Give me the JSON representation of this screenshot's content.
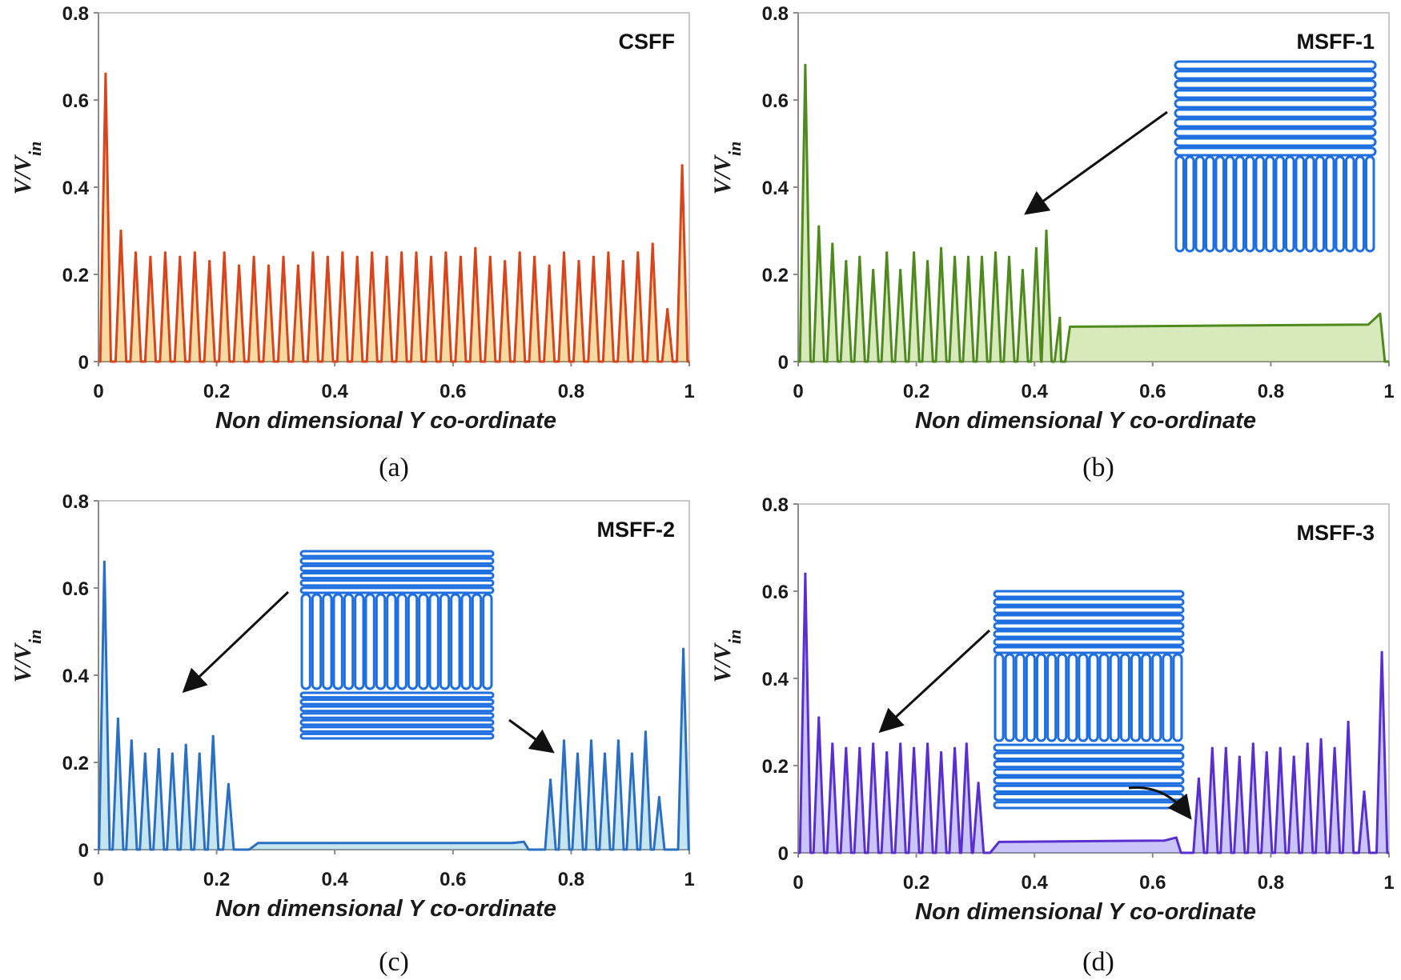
{
  "figure": {
    "panels": [
      "a",
      "b",
      "c",
      "d"
    ]
  },
  "chart_data": [
    {
      "id": "a",
      "type": "line",
      "title": "CSFF",
      "caption": "(a)",
      "xlabel": "Non dimensional Y co-ordinate",
      "ylabel": "V/V",
      "ylabel_sub": "in",
      "xlim": [
        0,
        1
      ],
      "ylim": [
        0,
        0.8
      ],
      "xticks": [
        "0",
        "0.2",
        "0.4",
        "0.6",
        "0.8",
        "1"
      ],
      "xtick_values": [
        0,
        0.2,
        0.4,
        0.6,
        0.8,
        1
      ],
      "yticks": [
        "0",
        "0.2",
        "0.4",
        "0.6",
        "0.8"
      ],
      "ytick_values": [
        0,
        0.2,
        0.4,
        0.6,
        0.8
      ],
      "color": "#d8441c",
      "fill_color": "#e8b030",
      "series": [
        {
          "name": "V/Vin",
          "peaks": [
            {
              "x": 0.012,
              "y": 0.66
            },
            {
              "x": 0.038,
              "y": 0.3
            },
            {
              "x": 0.063,
              "y": 0.25
            },
            {
              "x": 0.088,
              "y": 0.24
            },
            {
              "x": 0.113,
              "y": 0.25
            },
            {
              "x": 0.138,
              "y": 0.24
            },
            {
              "x": 0.163,
              "y": 0.25
            },
            {
              "x": 0.188,
              "y": 0.23
            },
            {
              "x": 0.213,
              "y": 0.25
            },
            {
              "x": 0.238,
              "y": 0.22
            },
            {
              "x": 0.263,
              "y": 0.24
            },
            {
              "x": 0.288,
              "y": 0.22
            },
            {
              "x": 0.313,
              "y": 0.24
            },
            {
              "x": 0.338,
              "y": 0.22
            },
            {
              "x": 0.363,
              "y": 0.25
            },
            {
              "x": 0.388,
              "y": 0.24
            },
            {
              "x": 0.413,
              "y": 0.25
            },
            {
              "x": 0.438,
              "y": 0.24
            },
            {
              "x": 0.463,
              "y": 0.25
            },
            {
              "x": 0.488,
              "y": 0.24
            },
            {
              "x": 0.513,
              "y": 0.25
            },
            {
              "x": 0.538,
              "y": 0.25
            },
            {
              "x": 0.563,
              "y": 0.24
            },
            {
              "x": 0.588,
              "y": 0.25
            },
            {
              "x": 0.613,
              "y": 0.24
            },
            {
              "x": 0.638,
              "y": 0.26
            },
            {
              "x": 0.663,
              "y": 0.24
            },
            {
              "x": 0.688,
              "y": 0.23
            },
            {
              "x": 0.713,
              "y": 0.25
            },
            {
              "x": 0.738,
              "y": 0.24
            },
            {
              "x": 0.763,
              "y": 0.22
            },
            {
              "x": 0.788,
              "y": 0.25
            },
            {
              "x": 0.813,
              "y": 0.23
            },
            {
              "x": 0.838,
              "y": 0.24
            },
            {
              "x": 0.863,
              "y": 0.25
            },
            {
              "x": 0.888,
              "y": 0.23
            },
            {
              "x": 0.913,
              "y": 0.25
            },
            {
              "x": 0.938,
              "y": 0.27
            },
            {
              "x": 0.963,
              "y": 0.12
            },
            {
              "x": 0.988,
              "y": 0.45
            }
          ]
        }
      ]
    },
    {
      "id": "b",
      "type": "line",
      "title": "MSFF-1",
      "caption": "(b)",
      "xlabel": "Non dimensional Y co-ordinate",
      "ylabel": "V/V",
      "ylabel_sub": "in",
      "xlim": [
        0,
        1
      ],
      "ylim": [
        0,
        0.8
      ],
      "xticks": [
        "0",
        "0.2",
        "0.4",
        "0.6",
        "0.8",
        "1"
      ],
      "xtick_values": [
        0,
        0.2,
        0.4,
        0.6,
        0.8,
        1
      ],
      "yticks": [
        "0",
        "0.2",
        "0.4",
        "0.6",
        "0.8"
      ],
      "ytick_values": [
        0,
        0.2,
        0.4,
        0.6,
        0.8
      ],
      "color": "#4e8a1e",
      "fill_color": "#a8d06a",
      "series": [
        {
          "name": "V/Vin",
          "peaks": [
            {
              "x": 0.012,
              "y": 0.68
            },
            {
              "x": 0.035,
              "y": 0.31
            },
            {
              "x": 0.058,
              "y": 0.27
            },
            {
              "x": 0.081,
              "y": 0.23
            },
            {
              "x": 0.104,
              "y": 0.24
            },
            {
              "x": 0.127,
              "y": 0.21
            },
            {
              "x": 0.15,
              "y": 0.25
            },
            {
              "x": 0.173,
              "y": 0.21
            },
            {
              "x": 0.196,
              "y": 0.25
            },
            {
              "x": 0.219,
              "y": 0.23
            },
            {
              "x": 0.242,
              "y": 0.26
            },
            {
              "x": 0.265,
              "y": 0.24
            },
            {
              "x": 0.288,
              "y": 0.24
            },
            {
              "x": 0.311,
              "y": 0.24
            },
            {
              "x": 0.334,
              "y": 0.25
            },
            {
              "x": 0.357,
              "y": 0.24
            },
            {
              "x": 0.38,
              "y": 0.21
            },
            {
              "x": 0.403,
              "y": 0.26
            },
            {
              "x": 0.42,
              "y": 0.3
            },
            {
              "x": 0.443,
              "y": 0.1
            }
          ],
          "plateau": {
            "start": 0.46,
            "end": 0.985,
            "level_start": 0.08,
            "level_end": 0.085,
            "end_peak": 0.11
          }
        }
      ],
      "inset": {
        "description": "serpentine channel schematic",
        "arrows": 1
      }
    },
    {
      "id": "c",
      "type": "line",
      "title": "MSFF-2",
      "caption": "(c)",
      "xlabel": "Non dimensional Y co-ordinate",
      "ylabel": "V/V",
      "ylabel_sub": "in",
      "xlim": [
        0,
        1
      ],
      "ylim": [
        0,
        0.8
      ],
      "xticks": [
        "0",
        "0.2",
        "0.4",
        "0.6",
        "0.8",
        "1"
      ],
      "xtick_values": [
        0,
        0.2,
        0.4,
        0.6,
        0.8,
        1
      ],
      "yticks": [
        "0",
        "0.2",
        "0.4",
        "0.6",
        "0.8"
      ],
      "ytick_values": [
        0,
        0.2,
        0.4,
        0.6,
        0.8
      ],
      "color": "#2a6fc2",
      "fill_color": "#7fc8e0",
      "series": [
        {
          "name": "V/Vin",
          "peaks": [
            {
              "x": 0.01,
              "y": 0.66
            },
            {
              "x": 0.033,
              "y": 0.3
            },
            {
              "x": 0.056,
              "y": 0.25
            },
            {
              "x": 0.079,
              "y": 0.22
            },
            {
              "x": 0.102,
              "y": 0.23
            },
            {
              "x": 0.125,
              "y": 0.22
            },
            {
              "x": 0.148,
              "y": 0.24
            },
            {
              "x": 0.171,
              "y": 0.22
            },
            {
              "x": 0.194,
              "y": 0.26
            },
            {
              "x": 0.22,
              "y": 0.15
            },
            {
              "x": 0.765,
              "y": 0.16
            },
            {
              "x": 0.788,
              "y": 0.25
            },
            {
              "x": 0.811,
              "y": 0.22
            },
            {
              "x": 0.834,
              "y": 0.25
            },
            {
              "x": 0.857,
              "y": 0.22
            },
            {
              "x": 0.88,
              "y": 0.25
            },
            {
              "x": 0.903,
              "y": 0.22
            },
            {
              "x": 0.926,
              "y": 0.27
            },
            {
              "x": 0.949,
              "y": 0.12
            },
            {
              "x": 0.99,
              "y": 0.46
            }
          ],
          "plateau": {
            "start": 0.27,
            "end": 0.72,
            "level_start": 0.015,
            "level_end": 0.015,
            "end_peak": 0.018
          }
        }
      ],
      "inset": {
        "description": "serpentine channel schematic",
        "arrows": 2
      }
    },
    {
      "id": "d",
      "type": "line",
      "title": "MSFF-3",
      "caption": "(d)",
      "xlabel": "Non dimensional Y co-ordinate",
      "ylabel": "V/V",
      "ylabel_sub": "in",
      "xlim": [
        0,
        1
      ],
      "ylim": [
        0,
        0.8
      ],
      "xticks": [
        "0",
        "0.2",
        "0.4",
        "0.6",
        "0.8",
        "1"
      ],
      "xtick_values": [
        0,
        0.2,
        0.4,
        0.6,
        0.8,
        1
      ],
      "yticks": [
        "0",
        "0.2",
        "0.4",
        "0.6",
        "0.8"
      ],
      "ytick_values": [
        0,
        0.2,
        0.4,
        0.6,
        0.8
      ],
      "color": "#5a2fd0",
      "fill_color": "#8a7ff0",
      "series": [
        {
          "name": "V/Vin",
          "peaks": [
            {
              "x": 0.012,
              "y": 0.64
            },
            {
              "x": 0.035,
              "y": 0.31
            },
            {
              "x": 0.058,
              "y": 0.25
            },
            {
              "x": 0.081,
              "y": 0.24
            },
            {
              "x": 0.104,
              "y": 0.24
            },
            {
              "x": 0.127,
              "y": 0.25
            },
            {
              "x": 0.15,
              "y": 0.23
            },
            {
              "x": 0.173,
              "y": 0.25
            },
            {
              "x": 0.196,
              "y": 0.24
            },
            {
              "x": 0.219,
              "y": 0.25
            },
            {
              "x": 0.242,
              "y": 0.23
            },
            {
              "x": 0.265,
              "y": 0.24
            },
            {
              "x": 0.285,
              "y": 0.25
            },
            {
              "x": 0.305,
              "y": 0.16
            },
            {
              "x": 0.678,
              "y": 0.17
            },
            {
              "x": 0.701,
              "y": 0.24
            },
            {
              "x": 0.724,
              "y": 0.24
            },
            {
              "x": 0.747,
              "y": 0.22
            },
            {
              "x": 0.77,
              "y": 0.25
            },
            {
              "x": 0.793,
              "y": 0.23
            },
            {
              "x": 0.816,
              "y": 0.24
            },
            {
              "x": 0.839,
              "y": 0.22
            },
            {
              "x": 0.862,
              "y": 0.25
            },
            {
              "x": 0.885,
              "y": 0.26
            },
            {
              "x": 0.908,
              "y": 0.24
            },
            {
              "x": 0.931,
              "y": 0.3
            },
            {
              "x": 0.958,
              "y": 0.14
            },
            {
              "x": 0.988,
              "y": 0.46
            }
          ],
          "plateau": {
            "start": 0.34,
            "end": 0.64,
            "level_start": 0.025,
            "level_end": 0.028,
            "end_peak": 0.035
          }
        }
      ],
      "inset": {
        "description": "serpentine channel schematic",
        "arrows": 2
      }
    }
  ]
}
